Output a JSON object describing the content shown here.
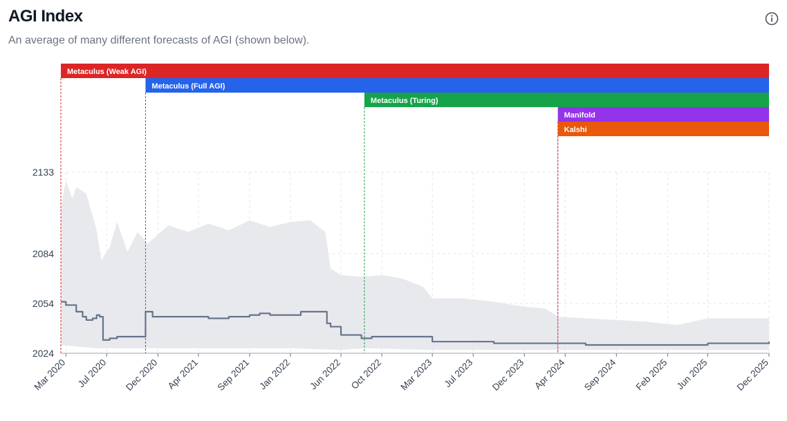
{
  "header": {
    "title": "AGI Index",
    "subtitle": "An average of many different forecasts of AGI (shown below).",
    "info_icon": "info-icon"
  },
  "chart_data": {
    "type": "line",
    "title": "AGI Index",
    "ylabel": "",
    "xlabel": "",
    "ylim": [
      2024,
      2133
    ],
    "xlim": [
      "2020-02-15",
      "2025-12-01"
    ],
    "yticks": [
      2024,
      2054,
      2084,
      2133
    ],
    "xticks": [
      {
        "date": "2020-03-01",
        "label": "Mar 2020"
      },
      {
        "date": "2020-07-01",
        "label": "Jul 2020"
      },
      {
        "date": "2020-12-01",
        "label": "Dec 2020"
      },
      {
        "date": "2021-04-01",
        "label": "Apr 2021"
      },
      {
        "date": "2021-09-01",
        "label": "Sep 2021"
      },
      {
        "date": "2022-01-01",
        "label": "Jan 2022"
      },
      {
        "date": "2022-06-01",
        "label": "Jun 2022"
      },
      {
        "date": "2022-10-01",
        "label": "Oct 2022"
      },
      {
        "date": "2023-03-01",
        "label": "Mar 2023"
      },
      {
        "date": "2023-07-01",
        "label": "Jul 2023"
      },
      {
        "date": "2023-12-01",
        "label": "Dec 2023"
      },
      {
        "date": "2024-04-01",
        "label": "Apr 2024"
      },
      {
        "date": "2024-09-01",
        "label": "Sep 2024"
      },
      {
        "date": "2025-02-01",
        "label": "Feb 2025"
      },
      {
        "date": "2025-06-01",
        "label": "Jun 2025"
      },
      {
        "date": "2025-12-01",
        "label": "Dec 2025"
      }
    ],
    "sources": [
      {
        "name": "Metaculus (Weak AGI)",
        "start": "2020-02-15",
        "color": "#dc2626"
      },
      {
        "name": "Metaculus (Full AGI)",
        "start": "2020-10-25",
        "color": "#2563eb"
      },
      {
        "name": "Metaculus (Turing)",
        "start": "2022-08-10",
        "color": "#16a34a"
      },
      {
        "name": "Manifold",
        "start": "2024-03-10",
        "color": "#9333ea"
      },
      {
        "name": "Kalshi",
        "start": "2024-03-10",
        "color": "#ea580c"
      }
    ],
    "series": [
      {
        "name": "AGI Index",
        "color": "#64748b",
        "points": [
          [
            "2020-02-15",
            2055
          ],
          [
            "2020-03-01",
            2053
          ],
          [
            "2020-03-20",
            2053
          ],
          [
            "2020-04-01",
            2049
          ],
          [
            "2020-04-20",
            2046
          ],
          [
            "2020-05-01",
            2044
          ],
          [
            "2020-05-20",
            2045
          ],
          [
            "2020-06-01",
            2047
          ],
          [
            "2020-06-10",
            2046
          ],
          [
            "2020-06-20",
            2032
          ],
          [
            "2020-07-10",
            2033
          ],
          [
            "2020-08-01",
            2034
          ],
          [
            "2020-09-01",
            2034
          ],
          [
            "2020-10-20",
            2034
          ],
          [
            "2020-10-25",
            2049
          ],
          [
            "2020-11-15",
            2046
          ],
          [
            "2021-01-01",
            2046
          ],
          [
            "2021-03-01",
            2046
          ],
          [
            "2021-05-01",
            2045
          ],
          [
            "2021-07-01",
            2046
          ],
          [
            "2021-09-01",
            2047
          ],
          [
            "2021-10-01",
            2048
          ],
          [
            "2021-11-01",
            2047
          ],
          [
            "2022-01-01",
            2047
          ],
          [
            "2022-02-01",
            2049
          ],
          [
            "2022-03-01",
            2049
          ],
          [
            "2022-04-01",
            2049
          ],
          [
            "2022-04-20",
            2042
          ],
          [
            "2022-05-01",
            2040
          ],
          [
            "2022-06-01",
            2035
          ],
          [
            "2022-08-01",
            2033
          ],
          [
            "2022-08-15",
            2033
          ],
          [
            "2022-09-01",
            2034
          ],
          [
            "2022-12-01",
            2034
          ],
          [
            "2023-02-01",
            2034
          ],
          [
            "2023-03-01",
            2031
          ],
          [
            "2023-06-01",
            2031
          ],
          [
            "2023-09-01",
            2030
          ],
          [
            "2024-01-01",
            2030
          ],
          [
            "2024-03-01",
            2030
          ],
          [
            "2024-06-01",
            2029
          ],
          [
            "2024-12-01",
            2029
          ],
          [
            "2025-03-01",
            2029
          ],
          [
            "2025-06-01",
            2030
          ],
          [
            "2025-12-01",
            2031
          ]
        ]
      }
    ],
    "band": {
      "name": "Forecast range",
      "color": "#e5e7eb",
      "upper": [
        [
          "2020-02-15",
          2112
        ],
        [
          "2020-03-01",
          2128
        ],
        [
          "2020-03-20",
          2117
        ],
        [
          "2020-04-01",
          2124
        ],
        [
          "2020-05-01",
          2120
        ],
        [
          "2020-06-01",
          2098
        ],
        [
          "2020-06-15",
          2080
        ],
        [
          "2020-07-10",
          2088
        ],
        [
          "2020-08-01",
          2103
        ],
        [
          "2020-09-01",
          2085
        ],
        [
          "2020-10-01",
          2097
        ],
        [
          "2020-11-01",
          2090
        ],
        [
          "2021-01-01",
          2101
        ],
        [
          "2021-03-01",
          2097
        ],
        [
          "2021-05-01",
          2102
        ],
        [
          "2021-07-01",
          2098
        ],
        [
          "2021-09-01",
          2104
        ],
        [
          "2021-11-01",
          2100
        ],
        [
          "2022-01-01",
          2103
        ],
        [
          "2022-03-01",
          2104
        ],
        [
          "2022-04-15",
          2097
        ],
        [
          "2022-05-01",
          2075
        ],
        [
          "2022-06-01",
          2071
        ],
        [
          "2022-08-01",
          2070
        ],
        [
          "2022-10-01",
          2071
        ],
        [
          "2022-12-01",
          2069
        ],
        [
          "2023-02-01",
          2064
        ],
        [
          "2023-03-01",
          2057
        ],
        [
          "2023-06-01",
          2057
        ],
        [
          "2023-09-01",
          2055
        ],
        [
          "2023-12-01",
          2052
        ],
        [
          "2024-02-01",
          2051
        ],
        [
          "2024-03-10",
          2046
        ],
        [
          "2024-06-01",
          2045
        ],
        [
          "2024-09-01",
          2044
        ],
        [
          "2024-12-01",
          2043
        ],
        [
          "2025-03-01",
          2041
        ],
        [
          "2025-06-01",
          2045
        ],
        [
          "2025-09-01",
          2045
        ],
        [
          "2025-12-01",
          2045
        ]
      ],
      "lower": [
        [
          "2020-02-15",
          2029
        ],
        [
          "2020-06-01",
          2027
        ],
        [
          "2020-12-01",
          2027
        ],
        [
          "2021-06-01",
          2027
        ],
        [
          "2022-01-01",
          2027
        ],
        [
          "2022-06-01",
          2026
        ],
        [
          "2022-08-10",
          2027
        ],
        [
          "2023-03-01",
          2026
        ],
        [
          "2024-01-01",
          2026
        ],
        [
          "2024-03-10",
          2026
        ],
        [
          "2025-12-01",
          2026
        ]
      ]
    }
  }
}
